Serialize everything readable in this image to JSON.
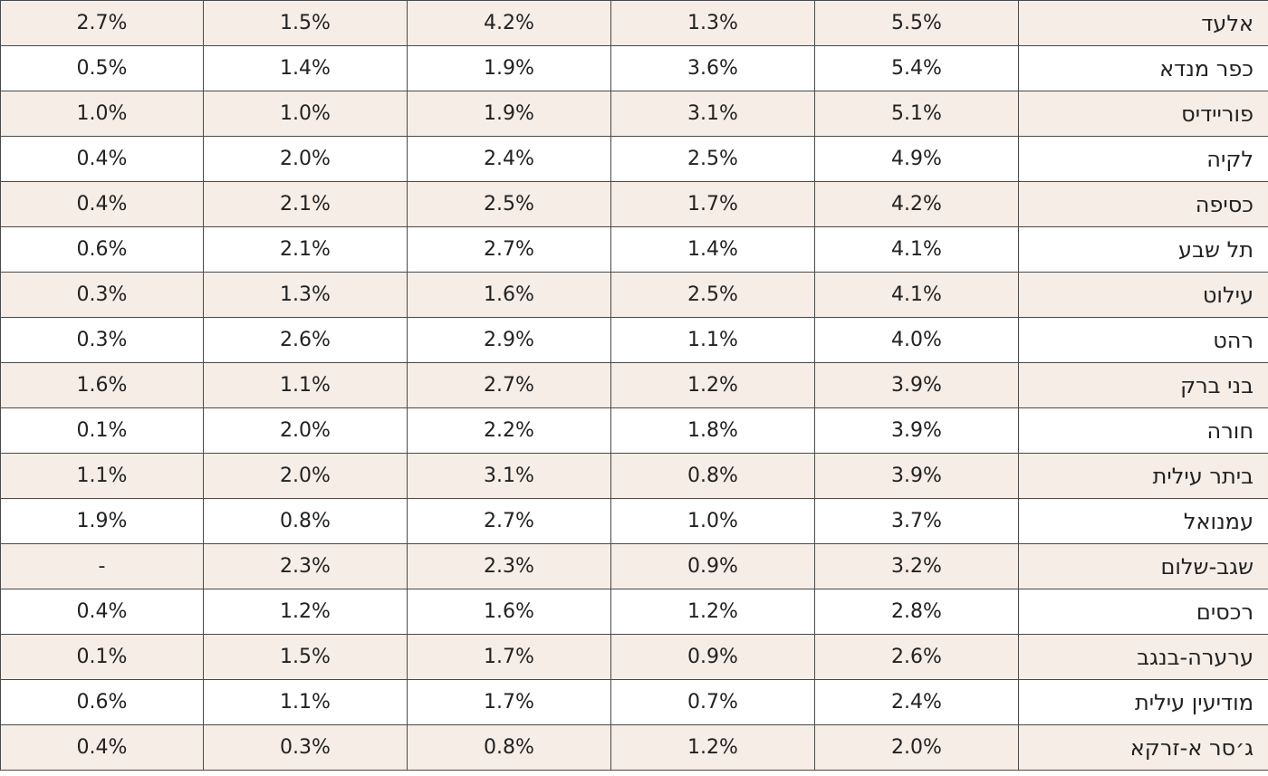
{
  "table": {
    "rows": [
      {
        "name": "אלעד",
        "values": [
          "5.5%",
          "1.3%",
          "4.2%",
          "1.5%",
          "2.7%"
        ]
      },
      {
        "name": "כפר מנדא",
        "values": [
          "5.4%",
          "3.6%",
          "1.9%",
          "1.4%",
          "0.5%"
        ]
      },
      {
        "name": "פוריידיס",
        "values": [
          "5.1%",
          "3.1%",
          "1.9%",
          "1.0%",
          "1.0%"
        ]
      },
      {
        "name": "לקיה",
        "values": [
          "4.9%",
          "2.5%",
          "2.4%",
          "2.0%",
          "0.4%"
        ]
      },
      {
        "name": "כסיפה",
        "values": [
          "4.2%",
          "1.7%",
          "2.5%",
          "2.1%",
          "0.4%"
        ]
      },
      {
        "name": "תל שבע",
        "values": [
          "4.1%",
          "1.4%",
          "2.7%",
          "2.1%",
          "0.6%"
        ]
      },
      {
        "name": "עילוט",
        "values": [
          "4.1%",
          "2.5%",
          "1.6%",
          "1.3%",
          "0.3%"
        ]
      },
      {
        "name": "רהט",
        "values": [
          "4.0%",
          "1.1%",
          "2.9%",
          "2.6%",
          "0.3%"
        ]
      },
      {
        "name": "בני ברק",
        "values": [
          "3.9%",
          "1.2%",
          "2.7%",
          "1.1%",
          "1.6%"
        ]
      },
      {
        "name": "חורה",
        "values": [
          "3.9%",
          "1.8%",
          "2.2%",
          "2.0%",
          "0.1%"
        ]
      },
      {
        "name": "ביתר עילית",
        "values": [
          "3.9%",
          "0.8%",
          "3.1%",
          "2.0%",
          "1.1%"
        ]
      },
      {
        "name": "עמנואל",
        "values": [
          "3.7%",
          "1.0%",
          "2.7%",
          "0.8%",
          "1.9%"
        ]
      },
      {
        "name": "שגב-שלום",
        "values": [
          "3.2%",
          "0.9%",
          "2.3%",
          "2.3%",
          "-"
        ]
      },
      {
        "name": "רכסים",
        "values": [
          "2.8%",
          "1.2%",
          "1.6%",
          "1.2%",
          "0.4%"
        ]
      },
      {
        "name": "ערערה-בנגב",
        "values": [
          "2.6%",
          "0.9%",
          "1.7%",
          "1.5%",
          "0.1%"
        ]
      },
      {
        "name": "מודיעין עילית",
        "values": [
          "2.4%",
          "0.7%",
          "1.7%",
          "1.1%",
          "0.6%"
        ]
      },
      {
        "name": "ג׳סר א-זרקא",
        "values": [
          "2.0%",
          "1.2%",
          "0.8%",
          "0.3%",
          "0.4%"
        ]
      }
    ]
  }
}
